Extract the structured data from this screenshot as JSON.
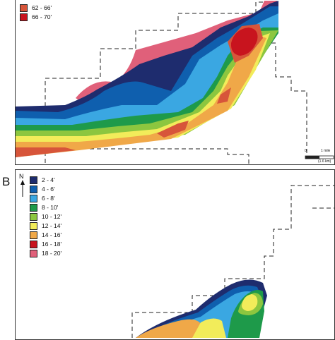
{
  "panel_a": {
    "legend": [
      {
        "label": "62 - 66'",
        "color": "#d7553a"
      },
      {
        "label": "66 - 70'",
        "color": "#c8141e"
      }
    ],
    "scale_zero": "0",
    "scale_mile": "1 mile",
    "scale_km": "(1.6 km)"
  },
  "panel_b": {
    "letter": "B",
    "north": "N",
    "legend": [
      {
        "label": "2 - 4'",
        "color": "#1e2c6e"
      },
      {
        "label": "4 - 6'",
        "color": "#0f5fae"
      },
      {
        "label": "6 - 8'",
        "color": "#3aa7e2"
      },
      {
        "label": "8 - 10'",
        "color": "#1e9a4a"
      },
      {
        "label": "10 - 12'",
        "color": "#8cc63f"
      },
      {
        "label": "12 - 14'",
        "color": "#f2ec5a"
      },
      {
        "label": "14 - 16'",
        "color": "#f0a848"
      },
      {
        "label": "16 - 18'",
        "color": "#c8141e"
      },
      {
        "label": "18 - 20'",
        "color": "#e0607a"
      }
    ]
  }
}
